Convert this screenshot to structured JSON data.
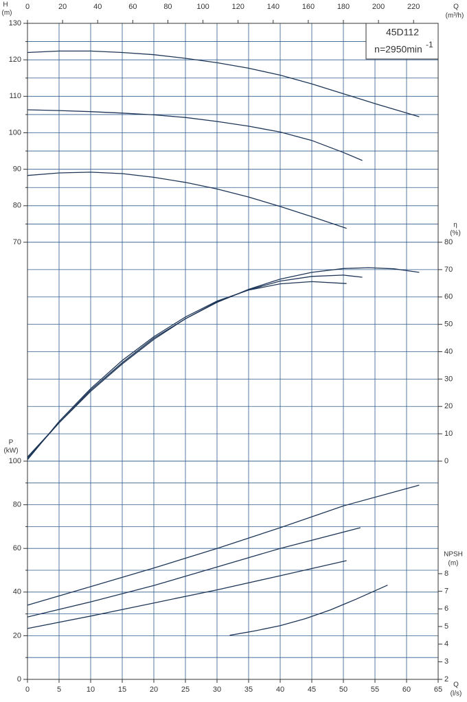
{
  "chart_data": [
    {
      "type": "line",
      "y_label": "H",
      "y_unit": "(m)",
      "x2_label": "Q",
      "x2_unit": "(m³/h)",
      "x2lim": [
        0,
        234
      ],
      "x2ticks": [
        0,
        20,
        40,
        60,
        80,
        100,
        120,
        140,
        160,
        180,
        200,
        220
      ],
      "ylim": [
        70,
        130
      ],
      "yticks": [
        70,
        80,
        90,
        100,
        110,
        120,
        130
      ],
      "yminor_ticks": [
        75,
        85,
        95,
        105,
        115,
        125
      ],
      "annotation": {
        "model": "45D112",
        "speed": "n=2950min",
        "speed_exponent": "-1"
      },
      "series": [
        {
          "color": "#1d3557",
          "x": [
            0,
            5,
            10,
            15,
            20,
            25,
            30,
            35,
            40,
            45,
            50,
            55,
            62
          ],
          "values": [
            122,
            122.4,
            122.4,
            122,
            121.4,
            120.4,
            119.2,
            117.7,
            115.8,
            113.4,
            110.7,
            108,
            104.4
          ]
        },
        {
          "color": "#1d3557",
          "x": [
            0,
            5,
            10,
            15,
            20,
            25,
            30,
            35,
            40,
            45,
            50,
            53
          ],
          "values": [
            106.3,
            106.1,
            105.8,
            105.4,
            104.9,
            104.2,
            103.1,
            101.8,
            100.2,
            97.9,
            94.6,
            92.4
          ]
        },
        {
          "color": "#1d3557",
          "x": [
            0,
            5,
            10,
            15,
            20,
            25,
            30,
            35,
            40,
            45,
            50.5
          ],
          "values": [
            88.3,
            89,
            89.2,
            88.8,
            87.8,
            86.4,
            84.6,
            82.4,
            79.8,
            77,
            73.8
          ]
        }
      ]
    },
    {
      "type": "line",
      "y_label": "η",
      "y_unit": "(%)",
      "ylim": [
        0,
        80
      ],
      "yticks": [
        0,
        10,
        20,
        30,
        40,
        50,
        60,
        70,
        80
      ],
      "series": [
        {
          "color": "#1d3557",
          "x": [
            0,
            5,
            10,
            15,
            20,
            25,
            30,
            35,
            40,
            45,
            50,
            54,
            58,
            62
          ],
          "values": [
            1.5,
            14,
            25.5,
            35.5,
            44.5,
            52,
            58,
            62.8,
            66.5,
            69,
            70.4,
            70.7,
            70.3,
            69
          ]
        },
        {
          "color": "#1d3557",
          "x": [
            0,
            5,
            10,
            15,
            20,
            25,
            30,
            35,
            40,
            45,
            50,
            53
          ],
          "values": [
            1,
            14,
            26,
            36,
            45,
            52,
            58.2,
            62.6,
            65.8,
            67.5,
            68,
            67.2
          ]
        },
        {
          "color": "#1d3557",
          "x": [
            0,
            5,
            10,
            15,
            20,
            25,
            30,
            35,
            40,
            45,
            50.5
          ],
          "values": [
            0.5,
            14.5,
            26.5,
            36.8,
            45.5,
            52.7,
            58.5,
            62.5,
            64.8,
            65.6,
            64.9
          ]
        }
      ]
    },
    {
      "type": "line",
      "y_label": "P",
      "y_unit": "(kW)",
      "ylim": [
        0,
        100
      ],
      "yticks": [
        0,
        20,
        40,
        60,
        80,
        100
      ],
      "yminor_ticks": [
        10,
        30,
        50,
        70,
        90
      ],
      "series": [
        {
          "color": "#1d3557",
          "x": [
            0,
            10,
            20,
            30,
            40,
            50,
            62
          ],
          "values": [
            34,
            42.5,
            51,
            60,
            69.5,
            79.5,
            89
          ]
        },
        {
          "color": "#1d3557",
          "x": [
            0,
            10,
            20,
            30,
            40,
            52.7
          ],
          "values": [
            28.6,
            35.5,
            43,
            51.5,
            60,
            69.5
          ]
        },
        {
          "color": "#1d3557",
          "x": [
            0,
            10,
            20,
            30,
            40,
            50.5
          ],
          "values": [
            23.3,
            29,
            35,
            41,
            47.5,
            54.4
          ]
        }
      ]
    },
    {
      "type": "line",
      "y_label": "NPSH",
      "y_unit": "(m)",
      "x_label": "Q",
      "x_unit": "(l/s)",
      "xlim": [
        0,
        65
      ],
      "xticks": [
        0,
        5,
        10,
        15,
        20,
        25,
        30,
        35,
        40,
        45,
        50,
        55,
        60,
        65
      ],
      "ylim": [
        2,
        8
      ],
      "yticks": [
        2,
        3,
        4,
        5,
        6,
        7,
        8
      ],
      "series": [
        {
          "color": "#1d3557",
          "x": [
            32,
            36,
            40,
            44,
            48,
            52,
            57
          ],
          "values": [
            4.5,
            4.75,
            5.05,
            5.45,
            5.95,
            6.55,
            7.35
          ]
        }
      ]
    }
  ]
}
